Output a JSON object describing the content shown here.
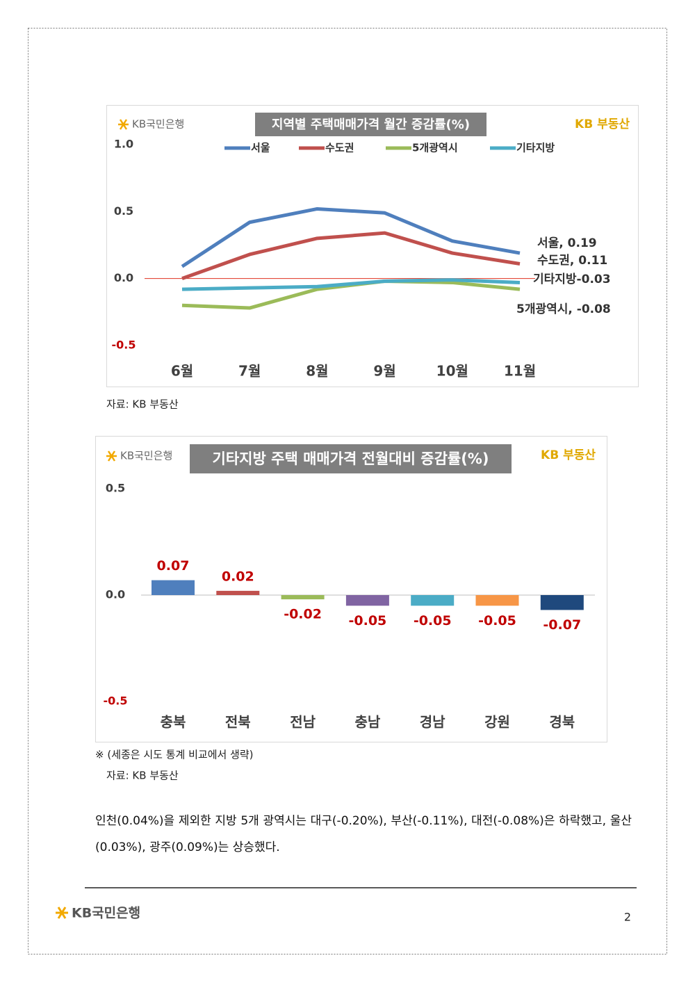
{
  "document": {
    "source_1": "자료: KB 부동산",
    "note": "※ (세종은 시도 통계 비교에서 생략)",
    "source_2": "자료: KB 부동산",
    "paragraph": "인천(0.04%)을 제외한 지방 5개 광역시는 대구(-0.20%), 부산(-0.11%), 대전(-0.08%)은 하락했고, 울산(0.03%), 광주(0.09%)는 상승했다.",
    "footer_logo": "KB국민은행",
    "page_number": "2"
  },
  "chart_data": [
    {
      "type": "line",
      "title": "지역별 주택매매가격 월간 증감률(%)",
      "logo": "KB국민은행",
      "brand": "KB 부동산",
      "categories": [
        "6월",
        "7월",
        "8월",
        "9월",
        "10월",
        "11월"
      ],
      "series": [
        {
          "name": "서울",
          "color": "#4f7fbd",
          "values": [
            0.09,
            0.42,
            0.52,
            0.49,
            0.28,
            0.19
          ]
        },
        {
          "name": "수도권",
          "color": "#c0504d",
          "values": [
            0.0,
            0.18,
            0.3,
            0.34,
            0.19,
            0.11
          ]
        },
        {
          "name": "5개광역시",
          "color": "#9bbb59",
          "values": [
            -0.2,
            -0.22,
            -0.08,
            -0.02,
            -0.03,
            -0.08
          ]
        },
        {
          "name": "기타지방",
          "color": "#4bacc6",
          "values": [
            -0.08,
            -0.07,
            -0.06,
            -0.02,
            -0.01,
            -0.03
          ]
        }
      ],
      "annotations": [
        "서울, 0.19",
        "수도권, 0.11",
        "5개광역시, -0.08",
        "기타지방-0.03"
      ],
      "ylim": [
        -0.5,
        1.0
      ],
      "yticks": [
        {
          "value": -0.5,
          "label": "-0.5"
        },
        {
          "value": 0,
          "label": "0.0"
        },
        {
          "value": 0.5,
          "label": "0.5"
        },
        {
          "value": 1.0,
          "label": "1.0"
        }
      ],
      "grid": false
    },
    {
      "type": "bar",
      "title": "기타지방 주택 매매가격 전월대비 증감률(%)",
      "logo": "KB국민은행",
      "brand": "KB 부동산",
      "categories": [
        "충북",
        "전북",
        "전남",
        "충남",
        "경남",
        "강원",
        "경북"
      ],
      "values": [
        0.07,
        0.02,
        -0.02,
        -0.05,
        -0.05,
        -0.05,
        -0.07
      ],
      "colors": [
        "#4f7fbd",
        "#c0504d",
        "#9bbb59",
        "#8064a2",
        "#4bacc6",
        "#f79646",
        "#1f497d"
      ],
      "ylim": [
        -0.5,
        0.5
      ],
      "yticks": [
        {
          "value": -0.5,
          "label": "-0.5"
        },
        {
          "value": 0,
          "label": "0.0"
        },
        {
          "value": 0.5,
          "label": "0.5"
        }
      ],
      "grid": false
    }
  ]
}
